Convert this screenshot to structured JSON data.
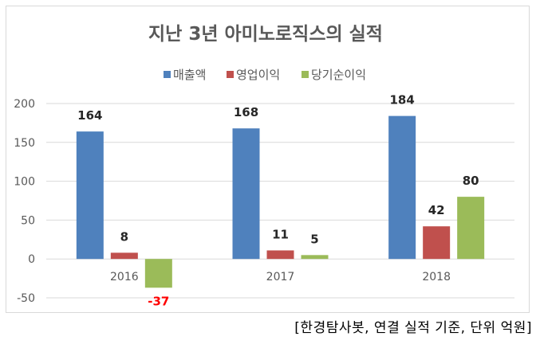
{
  "chart_data": {
    "type": "bar",
    "title": "지난 3년 아미노로직스의 실적",
    "categories": [
      "2016",
      "2017",
      "2018"
    ],
    "series": [
      {
        "name": "매출액",
        "values": [
          164,
          168,
          184
        ],
        "color": "#4f81bd"
      },
      {
        "name": "영업이익",
        "values": [
          8,
          11,
          42
        ],
        "color": "#c0504d"
      },
      {
        "name": "당기순이익",
        "values": [
          -37,
          5,
          80
        ],
        "color": "#9bbb59"
      }
    ],
    "ylim": [
      -50,
      200
    ],
    "yticks": [
      -50,
      0,
      50,
      100,
      150,
      200
    ],
    "legend_position": "top",
    "grid": true,
    "negative_label_color": "#ff0000"
  },
  "source_note": "[한경탐사봇, 연결 실적 기준, 단위 억원]"
}
